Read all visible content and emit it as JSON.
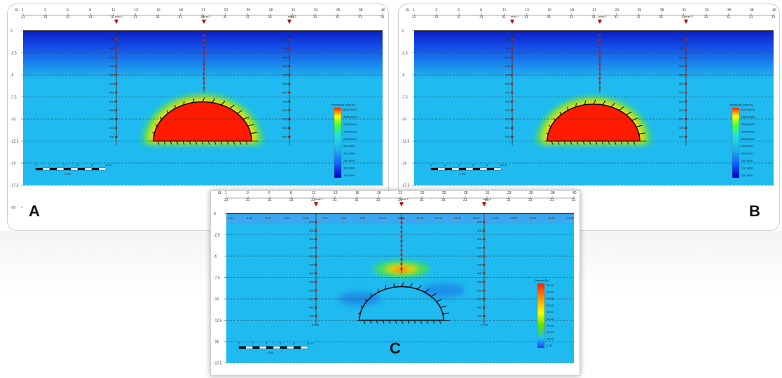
{
  "panels": {
    "a": {
      "label": "A",
      "legend_title": "Resistivity [ohm.m]",
      "legend_values": [
        "6300.0000",
        "3000.0000",
        "2500.0000",
        "1000.0000",
        "6300.0000",
        "630.0000",
        "400.0000",
        "250.0000",
        "100.0000",
        "100.0000"
      ]
    },
    "b": {
      "label": "B",
      "legend_title": "Resistivity [ohm.m]",
      "legend_values": [
        "6300.0000",
        "3000.0000",
        "2500.0000",
        "1000.0000",
        "6300.0000",
        "630.0000",
        "400.0000",
        "250.0000",
        "100.0000",
        "100.0000"
      ]
    },
    "c": {
      "label": "C",
      "legend_title": "Percent [%]",
      "legend_values": [
        "90.00",
        "80.00",
        "70.00",
        "60.00",
        "50.00",
        "40.00",
        "30.00",
        "20.00",
        "10.00",
        "0.00"
      ]
    }
  },
  "axes": {
    "top_ticks": [
      "1",
      "3",
      "6",
      "8",
      "11",
      "13",
      "16",
      "18",
      "21",
      "23",
      "25",
      "28",
      "31",
      "33",
      "35",
      "38",
      "40"
    ],
    "top_sub": "31",
    "left_ticks": [
      "0",
      "-2.5",
      "-5",
      "-7.5",
      "-10",
      "-12.5",
      "-15",
      "-17.5",
      "-20"
    ],
    "top_prefix": "XL",
    "c_top_prefix": "6L",
    "c_sub_ticks": [
      "1.00",
      "3.00",
      "5.00",
      "4.00",
      "6.00",
      "7.00",
      "9.00",
      "8.50",
      "10.00",
      "11.00",
      "12.00",
      "13.00",
      "14.00",
      "15.00",
      "17.00",
      "18.00",
      "19.00",
      "20.00",
      "21.00"
    ],
    "c_depth_left": "34.00",
    "c_depth_right": "-17.00",
    "c_mid_label": "2.00"
  },
  "boreholes": {
    "markers": [
      "mhw 1",
      "mhw 2",
      "mhw 3"
    ],
    "mid_marker": "mhw 2\nmhw 2",
    "labels": [
      "W5 1",
      "W5 2",
      "W5 3",
      "W5 4",
      "W5 5",
      "W5 6",
      "W5 7",
      "W5 8",
      "W5 9",
      "W5 10",
      "W5 11",
      "W5 12"
    ]
  },
  "scale": {
    "ticks": [
      "0",
      "2",
      "4",
      "6",
      "8",
      "10 m"
    ],
    "ratio": "1:150"
  },
  "colors": {
    "background_blue": "#1fbaf0",
    "top_band": "#0a1fc8",
    "anomaly": "#ff1a00",
    "halo": "#ffdd00"
  }
}
